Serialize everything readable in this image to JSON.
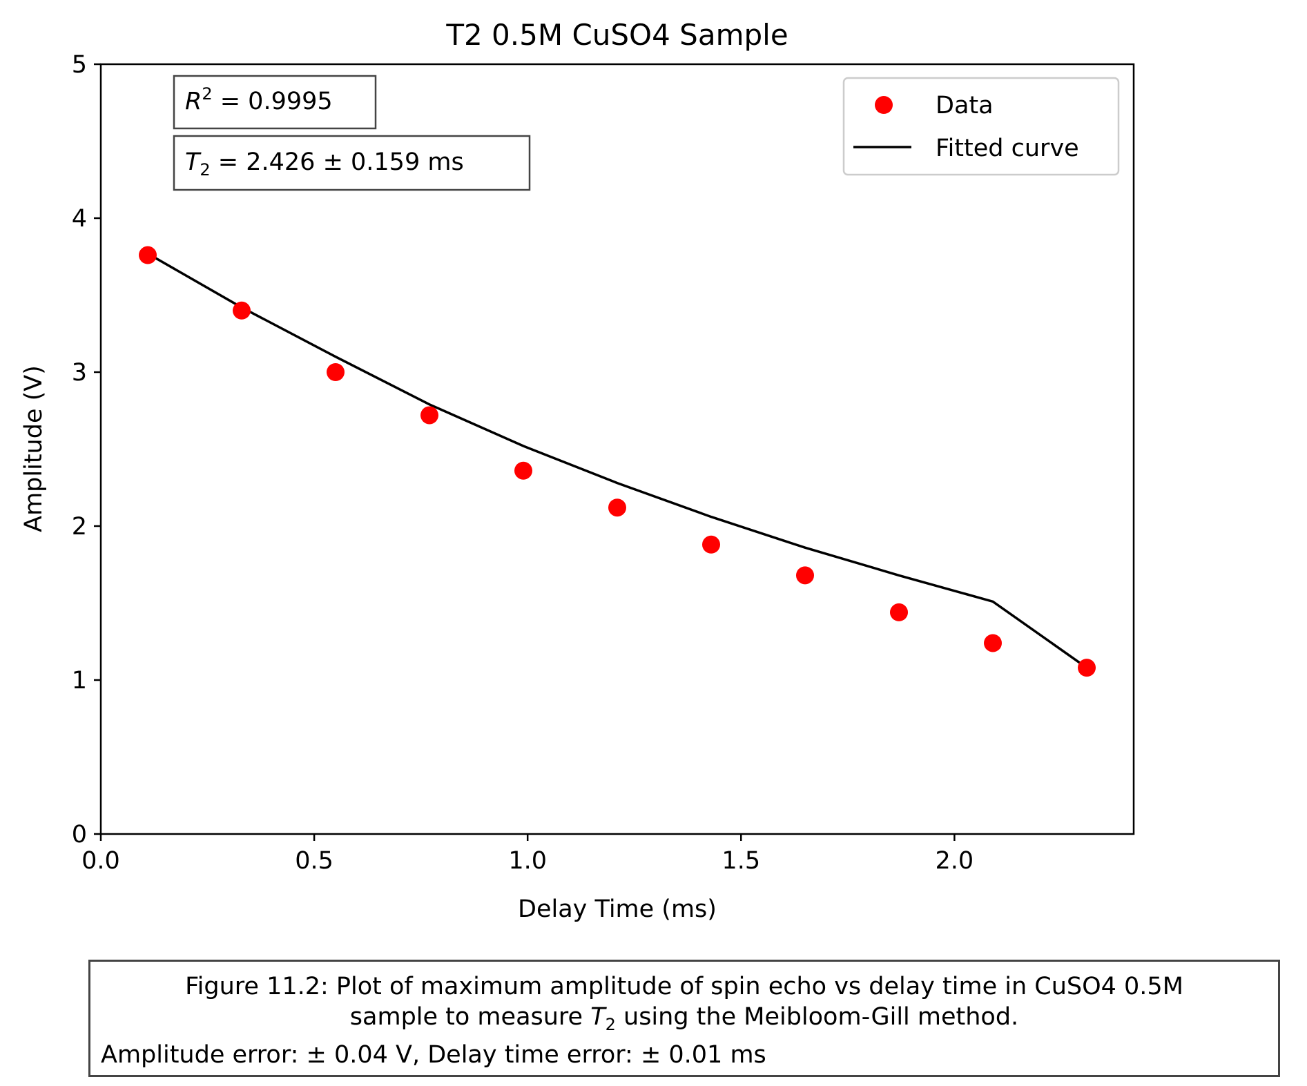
{
  "chart_data": {
    "type": "scatter",
    "title": "T2 0.5M CuSO4 Sample",
    "xlabel": "Delay Time (ms)",
    "ylabel": "Amplitude (V)",
    "xlim": [
      0.0,
      2.42
    ],
    "ylim": [
      0,
      5
    ],
    "xticks": [
      "0.0",
      "0.5",
      "1.0",
      "1.5",
      "2.0"
    ],
    "yticks": [
      "0",
      "1",
      "2",
      "3",
      "4",
      "5"
    ],
    "grid": false,
    "legend_position": "top-right",
    "series": [
      {
        "name": "Data",
        "kind": "scatter",
        "color": "#ff0000",
        "x": [
          0.11,
          0.33,
          0.55,
          0.77,
          0.99,
          1.21,
          1.43,
          1.65,
          1.87,
          2.09,
          2.31
        ],
        "y": [
          3.76,
          3.4,
          3.0,
          2.72,
          2.36,
          2.12,
          1.88,
          1.68,
          1.44,
          1.24,
          1.08
        ]
      },
      {
        "name": "Fitted curve",
        "kind": "line",
        "color": "#000000",
        "x": [
          0.11,
          0.33,
          0.55,
          0.77,
          0.99,
          1.21,
          1.43,
          1.65,
          1.87,
          2.09,
          2.31
        ],
        "y": [
          3.77,
          3.42,
          3.1,
          2.79,
          2.52,
          2.28,
          2.06,
          1.86,
          1.68,
          1.51,
          1.08
        ]
      }
    ],
    "annotations": {
      "r2_prefix": "R",
      "r2_sup": "2",
      "r2_text": " = 0.9995",
      "t2_prefix": "T",
      "t2_sub": "2",
      "t2_text": " = 2.426 ± 0.159 ms"
    }
  },
  "caption": {
    "line1": "Figure 11.2: Plot of maximum amplitude of spin echo vs delay time in CuSO4 0.5M",
    "line2_before": "sample to measure ",
    "line2_var": "T",
    "line2_sub": "2",
    "line2_after": " using the Meibloom-Gill method.",
    "line3": "Amplitude error: ± 0.04 V, Delay time error: ± 0.01 ms"
  }
}
